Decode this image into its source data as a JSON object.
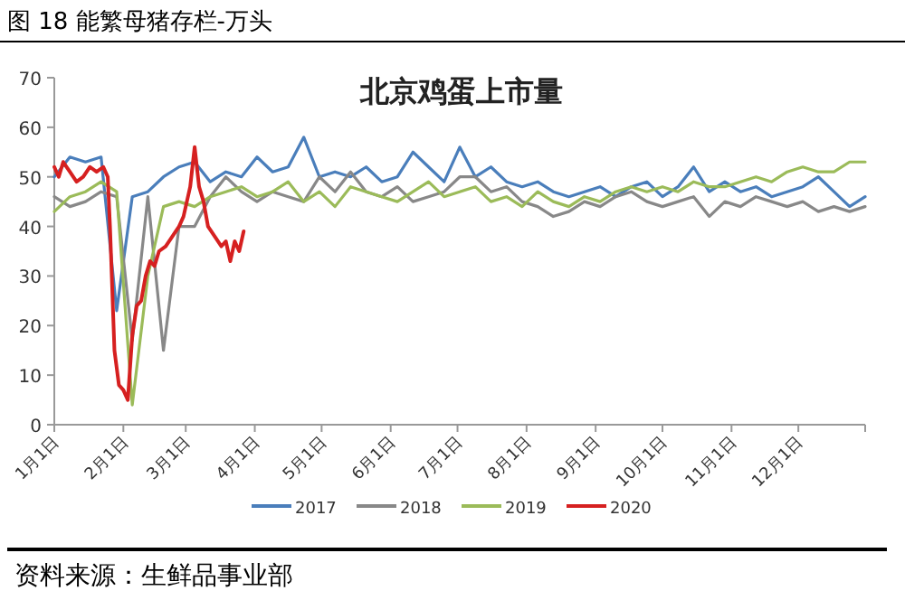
{
  "chart_data": {
    "type": "line",
    "title": "北京鸡蛋上市量",
    "annotations": [
      "图 18  能繁母猪存栏-万头",
      "资料来源：生鲜品事业部"
    ],
    "x": [
      "--01-01",
      "--01-08",
      "--01-15",
      "--01-22",
      "--01-29",
      "--02-05",
      "--02-12",
      "--02-19",
      "--02-26",
      "--03-05",
      "--03-12",
      "--03-19",
      "--03-26",
      "--04-02",
      "--04-09",
      "--04-16",
      "--04-23",
      "--04-30",
      "--05-07",
      "--05-14",
      "--05-21",
      "--05-28",
      "--06-04",
      "--06-11",
      "--06-18",
      "--06-25",
      "--07-02",
      "--07-09",
      "--07-16",
      "--07-23",
      "--07-30",
      "--08-06",
      "--08-13",
      "--08-20",
      "--08-27",
      "--09-03",
      "--09-10",
      "--09-17",
      "--09-24",
      "--10-01",
      "--10-08",
      "--10-15",
      "--10-22",
      "--10-29",
      "--11-05",
      "--11-12",
      "--11-19",
      "--11-26",
      "--12-03",
      "--12-10",
      "--12-17",
      "--12-24",
      "--12-31"
    ],
    "series": [
      {
        "name": "2017",
        "color": "#4a7ebb",
        "values": [
          50,
          54,
          53,
          54,
          23,
          46,
          47,
          50,
          52,
          53,
          49,
          51,
          50,
          54,
          51,
          52,
          58,
          50,
          51,
          50,
          52,
          49,
          50,
          55,
          52,
          49,
          56,
          50,
          52,
          49,
          48,
          49,
          47,
          46,
          47,
          48,
          46,
          48,
          49,
          46,
          48,
          52,
          47,
          49,
          47,
          48,
          46,
          47,
          48,
          50,
          47,
          44,
          46
        ]
      },
      {
        "name": "2018",
        "color": "#888888",
        "values": [
          46,
          44,
          45,
          47,
          46,
          17,
          46,
          15,
          40,
          40,
          46,
          50,
          47,
          45,
          47,
          46,
          45,
          50,
          47,
          51,
          47,
          46,
          48,
          45,
          46,
          47,
          50,
          50,
          47,
          48,
          45,
          44,
          42,
          43,
          45,
          44,
          46,
          47,
          45,
          44,
          45,
          46,
          42,
          45,
          44,
          46,
          45,
          44,
          45,
          43,
          44,
          43,
          44
        ]
      },
      {
        "name": "2019",
        "color": "#9bbb59",
        "values": [
          43,
          46,
          47,
          49,
          47,
          4,
          30,
          44,
          45,
          44,
          46,
          47,
          48,
          46,
          47,
          49,
          45,
          47,
          44,
          48,
          47,
          46,
          45,
          47,
          49,
          46,
          47,
          48,
          45,
          46,
          44,
          47,
          45,
          44,
          46,
          45,
          47,
          48,
          47,
          48,
          47,
          49,
          48,
          48,
          49,
          50,
          49,
          51,
          52,
          51,
          51,
          53,
          53
        ]
      },
      {
        "name": "2020",
        "color": "#d62020",
        "x": [
          "--01-01",
          "--01-03",
          "--01-05",
          "--01-08",
          "--01-11",
          "--01-14",
          "--01-17",
          "--01-20",
          "--01-23",
          "--01-25",
          "--01-26",
          "--01-28",
          "--01-30",
          "--02-01",
          "--02-03",
          "--02-05",
          "--02-07",
          "--02-09",
          "--02-11",
          "--02-13",
          "--02-15",
          "--02-17",
          "--02-20",
          "--02-23",
          "--02-26",
          "--02-28",
          "--03-03",
          "--03-05",
          "--03-07",
          "--03-09",
          "--03-11",
          "--03-14",
          "--03-17",
          "--03-19",
          "--03-21",
          "--03-23",
          "--03-25",
          "--03-27"
        ],
        "values": [
          52,
          50,
          53,
          51,
          49,
          50,
          52,
          51,
          52,
          50,
          40,
          15,
          8,
          7,
          5,
          18,
          24,
          25,
          30,
          33,
          32,
          35,
          36,
          38,
          40,
          42,
          48,
          56,
          48,
          45,
          40,
          38,
          36,
          37,
          33,
          37,
          35,
          39
        ]
      }
    ],
    "xlim": [
      "--01-01",
      "--12-31"
    ],
    "xticks": [
      {
        "value": "--01-01",
        "label": "1月1日"
      },
      {
        "value": "--02-01",
        "label": "2月1日"
      },
      {
        "value": "--03-01",
        "label": "3月1日"
      },
      {
        "value": "--04-01",
        "label": "4月1日"
      },
      {
        "value": "--05-01",
        "label": "5月1日"
      },
      {
        "value": "--06-01",
        "label": "6月1日"
      },
      {
        "value": "--07-01",
        "label": "7月1日"
      },
      {
        "value": "--08-01",
        "label": "8月1日"
      },
      {
        "value": "--09-01",
        "label": "9月1日"
      },
      {
        "value": "--10-01",
        "label": "10月1日"
      },
      {
        "value": "--11-01",
        "label": "11月1日"
      },
      {
        "value": "--12-01",
        "label": "12月1日"
      }
    ],
    "ylim": [
      0,
      70
    ],
    "yticks": [
      0,
      10,
      20,
      30,
      40,
      50,
      60,
      70
    ],
    "grid": false,
    "legend": "bottom",
    "marker": "none",
    "line_style": "solid"
  }
}
